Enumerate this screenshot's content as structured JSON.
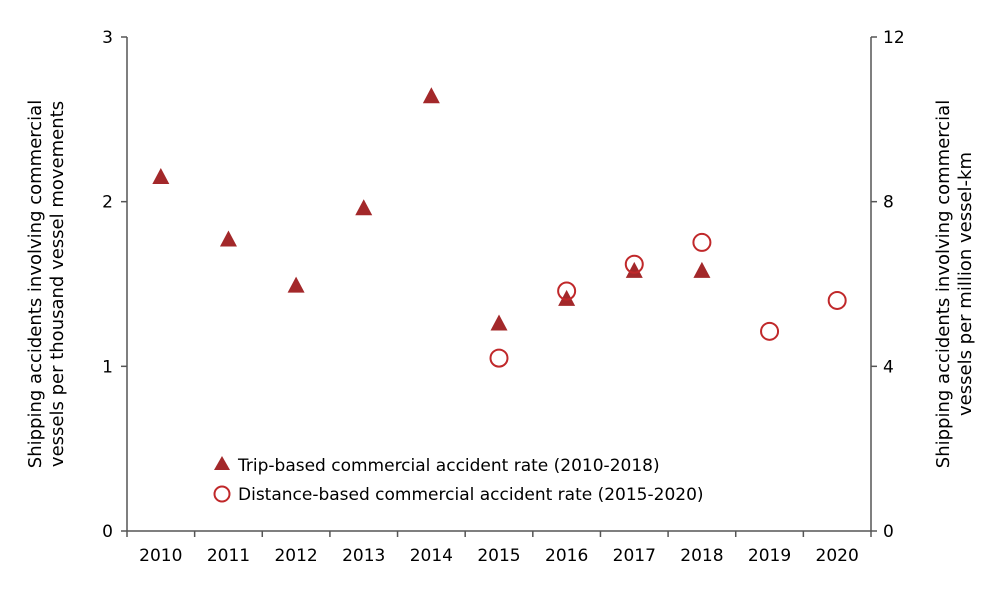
{
  "chart_data": {
    "type": "scatter",
    "categories": [
      "2010",
      "2011",
      "2012",
      "2013",
      "2014",
      "2015",
      "2016",
      "2017",
      "2018",
      "2019",
      "2020"
    ],
    "ylabel_left": [
      "Shipping  accidents involving commercial",
      "vessels per thousand vessel movements"
    ],
    "ylabel_right": [
      "Shipping  accidents involving commercial",
      "vessels per million vessel-km"
    ],
    "ylim_left": [
      0,
      3
    ],
    "yticks_left": [
      0,
      1,
      2,
      3
    ],
    "ylim_right": [
      0,
      12
    ],
    "yticks_right": [
      0,
      4,
      8,
      12
    ],
    "grid": false,
    "legend_placement": "bottom-center",
    "series": [
      {
        "name": "Trip-based commercial accident rate (2010-2018)",
        "axis": "left",
        "marker": "filled-triangle",
        "color": "#A3282A",
        "points": [
          {
            "x": "2010",
            "y": 2.15
          },
          {
            "x": "2011",
            "y": 1.77
          },
          {
            "x": "2012",
            "y": 1.49
          },
          {
            "x": "2013",
            "y": 1.96
          },
          {
            "x": "2014",
            "y": 2.64
          },
          {
            "x": "2015",
            "y": 1.26
          },
          {
            "x": "2016",
            "y": 1.41
          },
          {
            "x": "2017",
            "y": 1.58
          },
          {
            "x": "2018",
            "y": 1.58
          }
        ]
      },
      {
        "name": "Distance-based commercial accident rate (2015-2020)",
        "axis": "right",
        "marker": "open-circle",
        "color": "#C0282A",
        "points": [
          {
            "x": "2015",
            "y": 4.2
          },
          {
            "x": "2016",
            "y": 5.83
          },
          {
            "x": "2017",
            "y": 6.48
          },
          {
            "x": "2018",
            "y": 7.01
          },
          {
            "x": "2019",
            "y": 4.85
          },
          {
            "x": "2020",
            "y": 5.6
          }
        ]
      }
    ]
  }
}
